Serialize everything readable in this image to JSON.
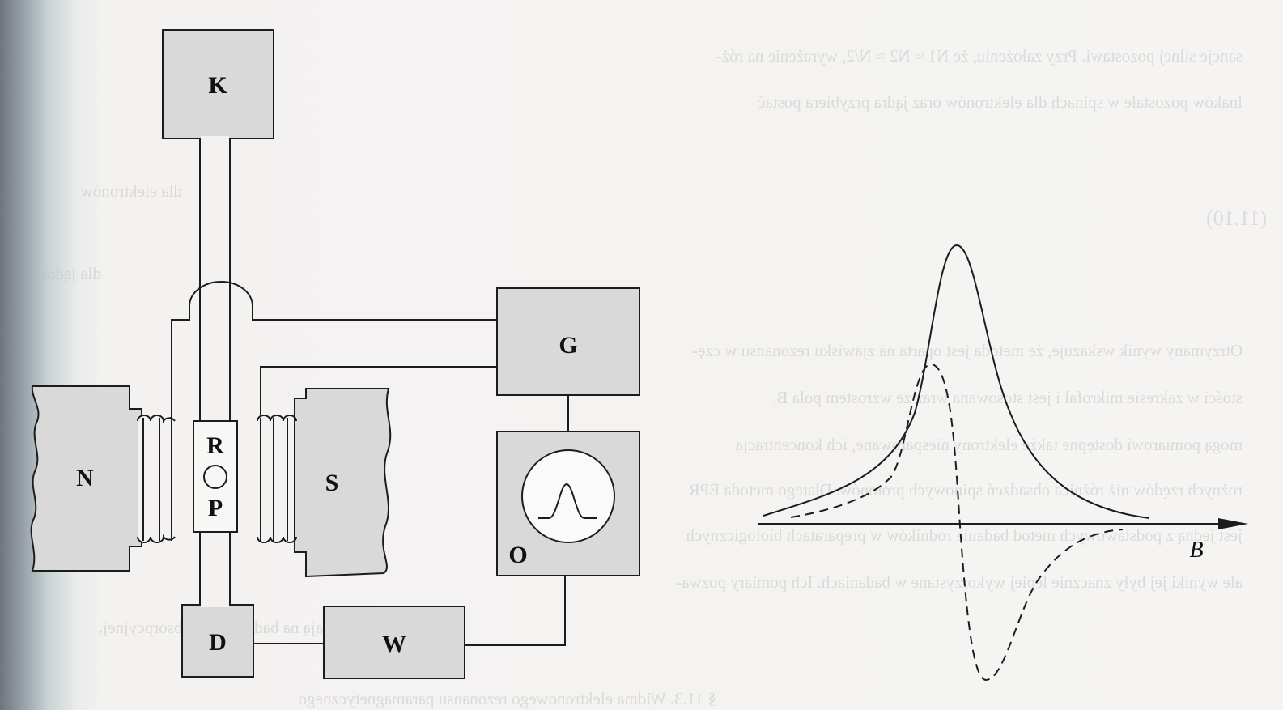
{
  "labels": {
    "klystron": "K",
    "generator": "G",
    "oscilloscope": "O",
    "detector": "D",
    "amplifier": "W",
    "magnet_n": "N",
    "magnet_s": "S",
    "resonator": "R",
    "sample": "P",
    "axis": "B"
  },
  "bleed_text": [
    "sancje silnej pozostawi. Przy założeniu, że N1 ≈ N2 ≈ N/2, wyrażenie na róż-",
    "lnaków pozostałe w spinach dla elektronów oraz jądra przybiera postać",
    "dla elektronów",
    "dla jądra",
    "Otrzymany wynik wskazuje, że metoda jest oparta na zjawisku rezonansu w czę-",
    "stości w zakresie mikrofal i jest stosowana wraz ze wzrostem pola B.",
    "mogą pomiarowi dostępne także elektrony niesparowane, ich koncentracja",
    "rożnych rzędów niż różnica obsadzeń spinowych protonów. Dlatego metoda EPR",
    "jest jedną z podstawowych metod badania rodników w preparatach biologicznych",
    "ale wyniki jej były znacznie lepiej wykorzystane w badaniach. Ich pomiary pozwa-",
    "lają na badanie linii absorpcyjnej."
  ],
  "equation_numbers": [
    "(11.10)"
  ],
  "footer_bleed": "§ 11.3. Widma elektronowego rezonansu paramagnetycznego"
}
